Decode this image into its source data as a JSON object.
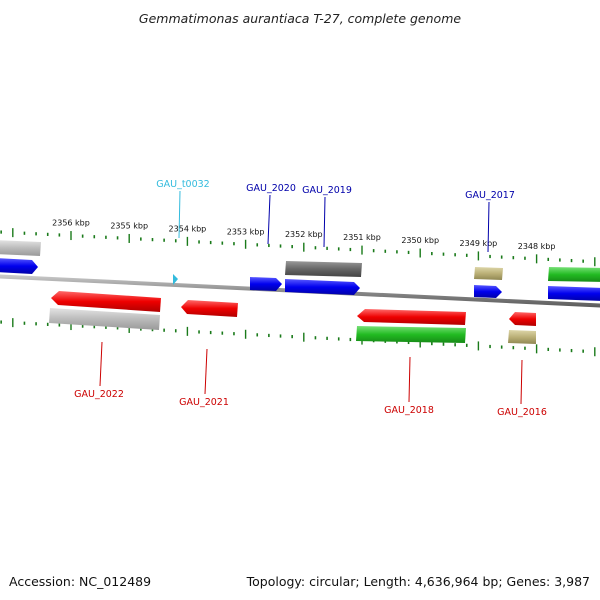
{
  "title": "Gemmatimonas aurantiaca T-27, complete genome",
  "footer": {
    "accession": "Accession: NC_012489",
    "summary": "Topology: circular; Length: 4,636,964 bp; Genes: 3,987"
  },
  "colors": {
    "backbone": "#8c8c8c",
    "tick": "#1a7a1a",
    "gene_label_forward": "#0000aa",
    "gene_label_reverse": "#cc0000",
    "trna_label": "#33bbdd"
  },
  "scale": {
    "unit": "kbp",
    "ticks": [
      {
        "kbp": 2356,
        "label": "2356 kbp"
      },
      {
        "kbp": 2355,
        "label": "2355 kbp"
      },
      {
        "kbp": 2354,
        "label": "2354 kbp"
      },
      {
        "kbp": 2353,
        "label": "2353 kbp"
      },
      {
        "kbp": 2352,
        "label": "2352 kbp"
      },
      {
        "kbp": 2351,
        "label": "2351 kbp"
      },
      {
        "kbp": 2350,
        "label": "2350 kbp"
      },
      {
        "kbp": 2349,
        "label": "2349 kbp"
      },
      {
        "kbp": 2348,
        "label": "2348 kbp"
      }
    ]
  },
  "labels": {
    "forward": [
      {
        "name": "GAU_t0032",
        "color": "trna"
      },
      {
        "name": "GAU_2020",
        "color": "forward"
      },
      {
        "name": "GAU_2019",
        "color": "forward"
      },
      {
        "name": "GAU_2017",
        "color": "forward"
      }
    ],
    "reverse": [
      {
        "name": "GAU_2022"
      },
      {
        "name": "GAU_2021"
      },
      {
        "name": "GAU_2018"
      },
      {
        "name": "GAU_2016"
      }
    ]
  },
  "legend_colors": {
    "blue": "#0000ee",
    "red": "#ee0000",
    "green": "#22bb22",
    "gray": "#bbbbbb",
    "darkgray": "#666666",
    "khaki": "#bbb077",
    "cyan": "#33bbdd"
  }
}
